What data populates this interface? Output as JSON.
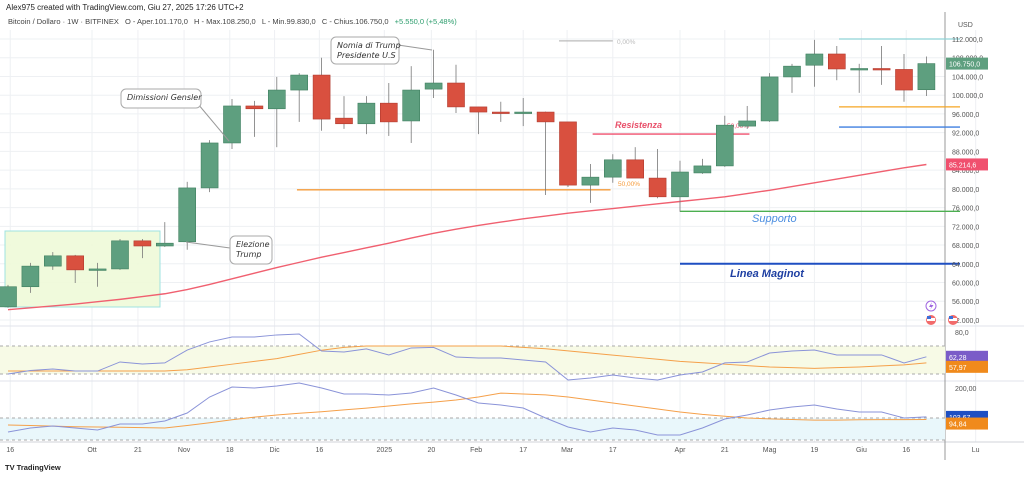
{
  "header": {
    "created": "Alex975 created with TradingView.com, Giu 27, 2025 17:26 UTC+2",
    "symbol": "Bitcoin / Dollaro · 1W · BITFINEX",
    "open": "O - Aper.101.170,0",
    "high": "H - Max.108.250,0",
    "low": "L - Min.99.830,0",
    "close": "C - Chius.106.750,0",
    "change": "+5.550,0 (+5,48%)"
  },
  "footer": {
    "logo": "TradingView"
  },
  "chart_data": [
    {
      "type": "candlestick",
      "title": "Bitcoin / Dollaro - 1W - BITFINEX",
      "currency": "USD",
      "ylabel": "USD",
      "ylim": [
        50000,
        114000
      ],
      "price_ticks": [
        112000,
        108000,
        104000,
        100000,
        96000,
        92000,
        88000,
        84000,
        80000,
        76000,
        72000,
        68000,
        64000,
        60000,
        56000,
        52000
      ],
      "price_tick_labels": [
        "112.000,0",
        "108.000,0",
        "104.000,0",
        "100.000,0",
        "96.000,0",
        "92.000,0",
        "88.000,0",
        "84.000,0",
        "80.000,0",
        "76.000,0",
        "72.000,0",
        "68.000,0",
        "64.000,0",
        "60.000,0",
        "56.000,0",
        "52.000,0"
      ],
      "x_labels": [
        {
          "t": "16",
          "i": 0.1
        },
        {
          "t": "Ott",
          "i": 3.75
        },
        {
          "t": "21",
          "i": 5.8
        },
        {
          "t": "Nov",
          "i": 7.86
        },
        {
          "t": "18",
          "i": 9.9
        },
        {
          "t": "Dic",
          "i": 11.9
        },
        {
          "t": "16",
          "i": 13.9
        },
        {
          "t": "2025",
          "i": 16.8
        },
        {
          "t": "20",
          "i": 18.9
        },
        {
          "t": "Feb",
          "i": 20.9
        },
        {
          "t": "17",
          "i": 23
        },
        {
          "t": "Mar",
          "i": 24.96
        },
        {
          "t": "17",
          "i": 27
        },
        {
          "t": "Apr",
          "i": 30
        },
        {
          "t": "21",
          "i": 32
        },
        {
          "t": "Mag",
          "i": 34
        },
        {
          "t": "19",
          "i": 36
        },
        {
          "t": "Giu",
          "i": 38.1
        },
        {
          "t": "16",
          "i": 40.1
        },
        {
          "t": "Lu",
          "i": 43.2
        }
      ],
      "ohlc_k": [
        [
          54.8,
          59.5,
          54.6,
          59.1
        ],
        [
          59.1,
          64.2,
          57.8,
          63.5
        ],
        [
          63.5,
          66.5,
          62.7,
          65.7
        ],
        [
          65.7,
          65.9,
          59.9,
          62.7
        ],
        [
          62.9,
          64.2,
          59.1,
          62.9
        ],
        [
          62.9,
          69.3,
          62.7,
          68.9
        ],
        [
          68.9,
          69.3,
          65.2,
          67.8
        ],
        [
          67.8,
          72.9,
          67.6,
          68.4
        ],
        [
          68.7,
          81.5,
          67.0,
          80.2
        ],
        [
          80.2,
          90.4,
          79.3,
          89.8
        ],
        [
          89.8,
          99.2,
          88.5,
          97.7
        ],
        [
          97.7,
          98.8,
          91.1,
          97.1
        ],
        [
          97.1,
          103.9,
          88.9,
          101.1
        ],
        [
          101.1,
          104.7,
          94.3,
          104.3
        ],
        [
          104.3,
          108.0,
          92.4,
          94.9
        ],
        [
          95.1,
          99.8,
          92.8,
          93.9
        ],
        [
          93.9,
          99.8,
          91.7,
          98.3
        ],
        [
          98.3,
          102.6,
          91.3,
          94.3
        ],
        [
          94.5,
          106.2,
          89.8,
          101.1
        ],
        [
          101.3,
          109.7,
          99.4,
          102.6
        ],
        [
          102.6,
          106.5,
          96.2,
          97.5
        ],
        [
          97.5,
          97.5,
          91.7,
          96.4
        ],
        [
          96.4,
          98.6,
          94.3,
          96.2
        ],
        [
          96.2,
          99.4,
          93.4,
          96.4
        ],
        [
          96.4,
          96.5,
          78.7,
          94.3
        ],
        [
          94.3,
          94.3,
          80.4,
          80.8
        ],
        [
          80.8,
          85.3,
          77.0,
          82.5
        ],
        [
          82.5,
          87.4,
          81.3,
          86.2
        ],
        [
          86.2,
          88.9,
          82.3,
          82.3
        ],
        [
          82.3,
          88.5,
          78.0,
          78.3
        ],
        [
          78.3,
          86.0,
          75.1,
          83.6
        ],
        [
          83.4,
          86.4,
          83.2,
          84.9
        ],
        [
          84.9,
          95.6,
          84.7,
          93.6
        ],
        [
          93.4,
          97.7,
          92.8,
          94.5
        ],
        [
          94.5,
          104.7,
          94.3,
          103.9
        ],
        [
          103.9,
          106.7,
          100.5,
          106.2
        ],
        [
          106.4,
          111.8,
          101.8,
          108.8
        ],
        [
          108.8,
          110.5,
          103.2,
          105.6
        ],
        [
          105.6,
          106.7,
          100.5,
          105.7
        ],
        [
          105.7,
          110.5,
          102.2,
          105.5
        ],
        [
          105.5,
          108.8,
          98.6,
          101.1
        ],
        [
          101.17,
          108.25,
          99.83,
          106.75
        ]
      ],
      "ma_k": [
        54.2,
        54.6,
        55.0,
        55.4,
        55.9,
        56.4,
        57.0,
        57.6,
        58.5,
        59.6,
        60.8,
        62.0,
        63.2,
        64.3,
        65.4,
        66.4,
        67.4,
        68.4,
        69.5,
        70.5,
        71.4,
        72.2,
        72.9,
        73.6,
        74.2,
        74.8,
        75.3,
        75.8,
        76.3,
        76.8,
        77.3,
        77.8,
        78.3,
        79.0,
        79.7,
        80.5,
        81.3,
        82.1,
        82.9,
        83.7,
        84.5,
        85.2
      ],
      "last_price_label": "106.750,0",
      "ma_label": "85.214,6",
      "levels": [
        {
          "name": "resistenza",
          "label": "Resistenza",
          "price": 91700,
          "from": 26.1,
          "to": 33.1,
          "color": "#f0506e"
        },
        {
          "name": "supporto",
          "label": "Supporto",
          "price": 75200,
          "from": 30,
          "to": 42.5,
          "color": "#4caf50"
        },
        {
          "name": "linea-maginot",
          "label": "Linea Maginot",
          "price": 64000,
          "from": 30,
          "to": 42.5,
          "color": "#1e4fc2"
        },
        {
          "name": "fib-50-orange",
          "label": "50,00%",
          "price": 79800,
          "from": 12.9,
          "to": 26.9,
          "color": "#f59b3a"
        },
        {
          "name": "fib-50-pink",
          "label": "50,00%",
          "price": 91800,
          "from": 33,
          "to": 33,
          "color": "#f0506e"
        },
        {
          "name": "fib-0",
          "label": "0,00%",
          "price": 111600,
          "from": 24.6,
          "to": 27,
          "color": "#bbbbbb"
        },
        {
          "name": "right-cyan",
          "label": "",
          "price": 112000,
          "from": 37.1,
          "to": 42.5,
          "color": "#8fd3d6"
        },
        {
          "name": "right-orange",
          "label": "",
          "price": 97500,
          "from": 37.1,
          "to": 42.5,
          "color": "#f5a623"
        },
        {
          "name": "right-blue",
          "label": "",
          "price": 93200,
          "from": 37.1,
          "to": 42.5,
          "color": "#3f7fe0"
        }
      ],
      "annotations": [
        {
          "text": [
            "Dimissioni Gensler"
          ]
        },
        {
          "text": [
            "Nomia di Trump",
            "Presidente U.S"
          ]
        },
        {
          "text": [
            "Elezione",
            "Trump"
          ]
        }
      ],
      "osc1": {
        "top_label": "80,0",
        "values": [
          50,
          52.5,
          53.6,
          52.1,
          52.1,
          58.6,
          57.1,
          57.9,
          67.1,
          72.9,
          76.4,
          76.4,
          77.9,
          78.6,
          66.4,
          65.7,
          67.9,
          63.6,
          68.6,
          69,
          62.1,
          61.4,
          61.4,
          60,
          58.6,
          45.7,
          47.1,
          49.3,
          47.1,
          45.7,
          49.3,
          51.4,
          57.9,
          58.6,
          65,
          66.4,
          67.1,
          63.6,
          63.6,
          63.6,
          57.9,
          62.28
        ],
        "signal": [
          52.1,
          52.1,
          52.1,
          52.1,
          52.1,
          52.1,
          52.1,
          52.1,
          53,
          55,
          57,
          59,
          61,
          64,
          67,
          69,
          70,
          70,
          70,
          70,
          70,
          70,
          70,
          69,
          68,
          66.5,
          65,
          63.5,
          62,
          60.5,
          59,
          58,
          57,
          56,
          55,
          54.5,
          54,
          54.5,
          55,
          55.8,
          56.5,
          57.97
        ],
        "label_a": "62,28",
        "label_b": "57,97",
        "color_a": "#7a5cc8",
        "color_b": "#f08a1c"
      },
      "osc2": {
        "top_label": "200,00",
        "values": [
          53.3,
          66.7,
          73.3,
          66.7,
          60,
          80,
          80,
          90,
          116.7,
          170,
          203.3,
          200,
          206.7,
          216.7,
          200,
          180,
          180,
          176.7,
          183.3,
          200,
          176.7,
          150,
          143.3,
          133.3,
          100,
          70,
          53.3,
          66.7,
          60,
          43.3,
          43.3,
          66.7,
          96.7,
          110,
          126.7,
          136.7,
          143.3,
          130,
          120,
          120,
          100,
          103.67
        ],
        "signal": [
          76.7,
          75,
          73,
          71,
          70,
          69,
          68,
          66.7,
          75,
          84,
          94,
          103,
          110,
          116,
          121,
          127,
          133,
          140,
          147,
          153,
          160,
          170,
          183,
          180,
          177,
          170,
          160,
          150,
          140,
          130,
          120,
          112,
          106,
          100,
          97,
          95,
          93,
          93,
          94,
          94.5,
          94.7,
          94.84
        ],
        "label_a": "103,67",
        "label_b": "94,84",
        "color_a": "#1e4fc2",
        "color_b": "#f08a1c"
      }
    }
  ],
  "colors": {
    "up": "#5e9f7f",
    "down": "#d9503f",
    "ma": "#f06070"
  }
}
